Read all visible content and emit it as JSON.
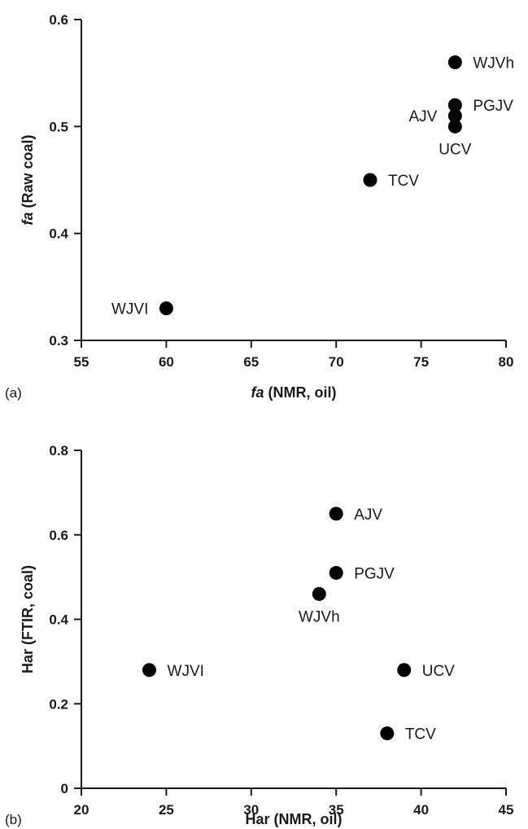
{
  "chart_data": [
    {
      "type": "scatter",
      "panel_label": "(a)",
      "xlabel_italic": "fa",
      "xlabel_rest": " (NMR, oil)",
      "ylabel_italic": "fa",
      "ylabel_rest": " (Raw coal)",
      "xlim": [
        55,
        80
      ],
      "ylim": [
        0.3,
        0.6
      ],
      "xticks": [
        "55",
        "60",
        "65",
        "70",
        "75",
        "80"
      ],
      "xtick_values": [
        55,
        60,
        65,
        70,
        75,
        80
      ],
      "yticks": [
        "0.3",
        "0.4",
        "0.5",
        "0.6"
      ],
      "ytick_values": [
        0.3,
        0.4,
        0.5,
        0.6
      ],
      "points": [
        {
          "label": "WJVh",
          "x": 77,
          "y": 0.56,
          "label_side": "right"
        },
        {
          "label": "PGJV",
          "x": 77,
          "y": 0.52,
          "label_side": "right"
        },
        {
          "label": "AJV",
          "x": 77,
          "y": 0.51,
          "label_side": "left"
        },
        {
          "label": "UCV",
          "x": 77,
          "y": 0.5,
          "label_side": "below"
        },
        {
          "label": "TCV",
          "x": 72,
          "y": 0.45,
          "label_side": "right"
        },
        {
          "label": "WJVI",
          "x": 60,
          "y": 0.33,
          "label_side": "left"
        }
      ]
    },
    {
      "type": "scatter",
      "panel_label": "(b)",
      "xlabel_italic": "",
      "xlabel_rest": "Har (NMR, oil)",
      "ylabel_italic": "",
      "ylabel_rest": "Har (FTIR, coal)",
      "xlim": [
        20,
        45
      ],
      "ylim": [
        0,
        0.8
      ],
      "xticks": [
        "20",
        "25",
        "30",
        "35",
        "40",
        "45"
      ],
      "xtick_values": [
        20,
        25,
        30,
        35,
        40,
        45
      ],
      "yticks": [
        "0",
        "0.2",
        "0.4",
        "0.6",
        "0.8"
      ],
      "ytick_values": [
        0,
        0.2,
        0.4,
        0.6,
        0.8
      ],
      "points": [
        {
          "label": "AJV",
          "x": 35,
          "y": 0.65,
          "label_side": "right"
        },
        {
          "label": "PGJV",
          "x": 35,
          "y": 0.51,
          "label_side": "right"
        },
        {
          "label": "WJVh",
          "x": 34,
          "y": 0.46,
          "label_side": "below"
        },
        {
          "label": "WJVI",
          "x": 24,
          "y": 0.28,
          "label_side": "right"
        },
        {
          "label": "UCV",
          "x": 39,
          "y": 0.28,
          "label_side": "right"
        },
        {
          "label": "TCV",
          "x": 38,
          "y": 0.13,
          "label_side": "right"
        }
      ]
    }
  ]
}
